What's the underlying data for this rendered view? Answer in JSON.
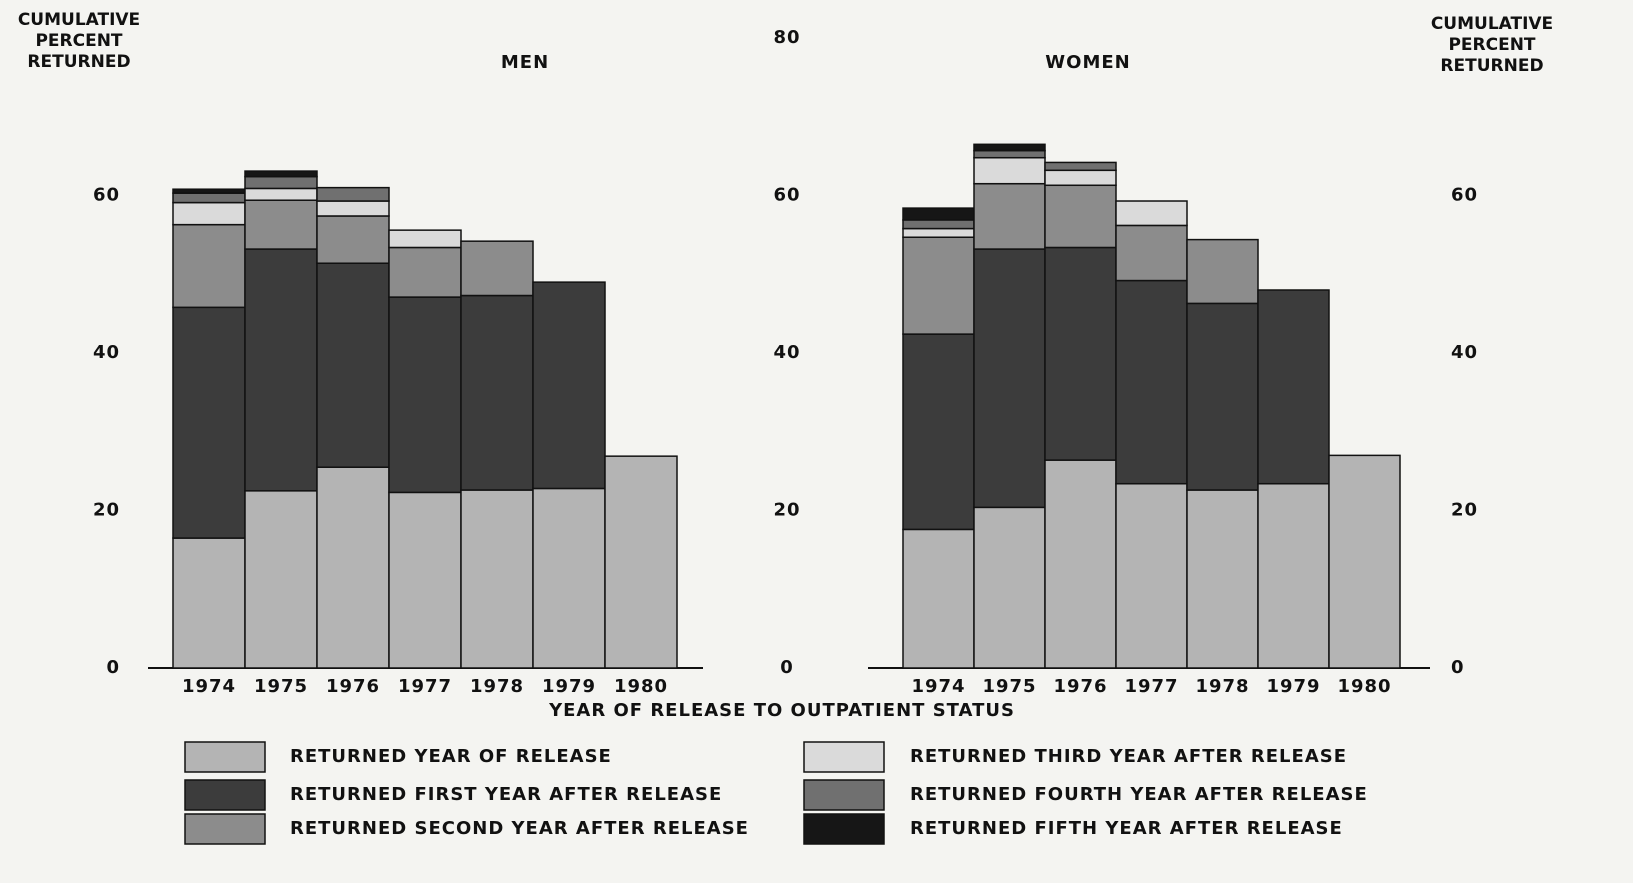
{
  "chart_data": [
    {
      "type": "bar",
      "stacked": true,
      "title": "MEN",
      "ylabel": "CUMULATIVE PERCENT RETURNED",
      "xlabel": "YEAR OF RELEASE TO OUTPATIENT STATUS",
      "categories": [
        "1974",
        "1975",
        "1976",
        "1977",
        "1978",
        "1979",
        "1980"
      ],
      "ylim": [
        0,
        80
      ],
      "yticks": [
        0,
        20,
        40,
        60
      ],
      "series": [
        {
          "name": "RETURNED YEAR OF RELEASE",
          "color": "#b4b4b4",
          "values": [
            16.5,
            22.5,
            25.5,
            22.3,
            22.6,
            22.8,
            26.9
          ]
        },
        {
          "name": "RETURNED FIRST YEAR AFTER RELEASE",
          "color": "#3c3c3c",
          "values": [
            29.3,
            30.7,
            25.9,
            24.8,
            24.7,
            26.2,
            null
          ]
        },
        {
          "name": "RETURNED SECOND YEAR AFTER RELEASE",
          "color": "#8c8c8c",
          "values": [
            10.5,
            6.2,
            6.0,
            6.3,
            6.9,
            null,
            null
          ]
        },
        {
          "name": "RETURNED THIRD YEAR AFTER RELEASE",
          "color": "#dadada",
          "values": [
            2.8,
            1.5,
            1.9,
            2.2,
            null,
            null,
            null
          ]
        },
        {
          "name": "RETURNED FOURTH YEAR AFTER RELEASE",
          "color": "#707070",
          "values": [
            1.2,
            1.5,
            1.7,
            null,
            null,
            null,
            null
          ]
        },
        {
          "name": "RETURNED FIFTH YEAR AFTER RELEASE",
          "color": "#161616",
          "values": [
            0.5,
            0.7,
            null,
            null,
            null,
            null,
            null
          ]
        }
      ]
    },
    {
      "type": "bar",
      "stacked": true,
      "title": "WOMEN",
      "y2label": "CUMULATIVE PERCENT RETURNED",
      "categories": [
        "1974",
        "1975",
        "1976",
        "1977",
        "1978",
        "1979",
        "1980"
      ],
      "ylim": [
        0,
        80
      ],
      "yticks": [
        0,
        20,
        40,
        60,
        80
      ],
      "y2lim": [
        0,
        80
      ],
      "y2ticks": [
        0,
        20,
        40,
        60
      ],
      "series": [
        {
          "name": "RETURNED YEAR OF RELEASE",
          "color": "#b4b4b4",
          "values": [
            17.6,
            20.4,
            26.4,
            23.4,
            22.6,
            23.4,
            27.0
          ]
        },
        {
          "name": "RETURNED FIRST YEAR AFTER RELEASE",
          "color": "#3c3c3c",
          "values": [
            24.8,
            32.8,
            27.0,
            25.8,
            23.7,
            24.6,
            null
          ]
        },
        {
          "name": "RETURNED SECOND YEAR AFTER RELEASE",
          "color": "#8c8c8c",
          "values": [
            12.3,
            8.3,
            7.9,
            7.0,
            8.1,
            null,
            null
          ]
        },
        {
          "name": "RETURNED THIRD YEAR AFTER RELEASE",
          "color": "#dadada",
          "values": [
            1.1,
            3.3,
            1.9,
            3.1,
            null,
            null,
            null
          ]
        },
        {
          "name": "RETURNED FOURTH YEAR AFTER RELEASE",
          "color": "#707070",
          "values": [
            1.1,
            0.9,
            1.0,
            null,
            null,
            null,
            null
          ]
        },
        {
          "name": "RETURNED FIFTH YEAR AFTER RELEASE",
          "color": "#161616",
          "values": [
            1.5,
            0.8,
            null,
            null,
            null,
            null,
            null
          ]
        }
      ]
    }
  ]
}
